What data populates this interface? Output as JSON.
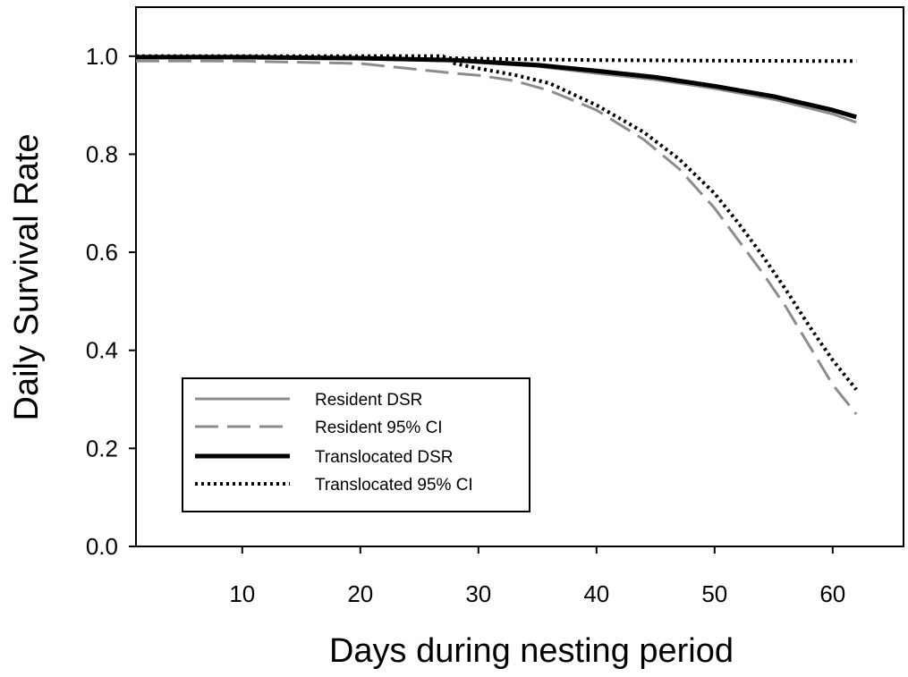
{
  "chart_data": {
    "type": "line",
    "xlabel": "Days during nesting period",
    "ylabel": "Daily Survival Rate",
    "xlim": [
      1,
      66
    ],
    "ylim": [
      0.0,
      1.1
    ],
    "xticks": [
      10,
      20,
      30,
      40,
      50,
      60
    ],
    "yticks": [
      0.0,
      0.2,
      0.4,
      0.6,
      0.8,
      1.0
    ],
    "xtick_labels": [
      "10",
      "20",
      "30",
      "40",
      "50",
      "60"
    ],
    "ytick_labels": [
      "0.0",
      "0.2",
      "0.4",
      "0.6",
      "0.8",
      "1.0"
    ],
    "grid": false,
    "legend_position": "bottom-left",
    "series": [
      {
        "name": "Resident DSR",
        "color": "#8c8c8c",
        "style": "solid",
        "x": [
          1,
          10,
          20,
          28,
          35,
          40,
          45,
          50,
          55,
          60,
          62
        ],
        "y": [
          0.997,
          0.996,
          0.994,
          0.99,
          0.979,
          0.965,
          0.952,
          0.934,
          0.912,
          0.882,
          0.865
        ]
      },
      {
        "name": "Resident 95% CI",
        "color": "#8c8c8c",
        "style": "dashed",
        "x": [
          1,
          10,
          20,
          28,
          30,
          33,
          36,
          40,
          44,
          47,
          50,
          52,
          54,
          56,
          58,
          60,
          62
        ],
        "y": [
          0.99,
          0.99,
          0.985,
          0.965,
          0.961,
          0.95,
          0.93,
          0.89,
          0.83,
          0.77,
          0.69,
          0.625,
          0.56,
          0.49,
          0.41,
          0.33,
          0.27
        ]
      },
      {
        "name": "Translocated DSR",
        "color": "#000000",
        "style": "solid",
        "x": [
          1,
          10,
          20,
          28,
          35,
          40,
          45,
          50,
          55,
          60,
          62
        ],
        "y": [
          0.998,
          0.998,
          0.996,
          0.992,
          0.982,
          0.97,
          0.957,
          0.939,
          0.918,
          0.89,
          0.876
        ]
      },
      {
        "name": "Translocated 95% CI",
        "color": "#000000",
        "style": "dotted",
        "x": [
          1,
          10,
          20,
          27,
          28,
          30,
          33,
          36,
          40,
          44,
          47,
          50,
          52,
          54,
          56,
          58,
          60,
          62
        ],
        "y": [
          1.0,
          1.0,
          1.0,
          1.0,
          0.985,
          0.975,
          0.962,
          0.945,
          0.9,
          0.845,
          0.79,
          0.72,
          0.66,
          0.595,
          0.525,
          0.45,
          0.38,
          0.32
        ]
      },
      {
        "name": "Translocated 95% CI (upper)",
        "color": "#000000",
        "style": "dotted",
        "x": [
          1,
          10,
          20,
          30,
          40,
          50,
          60,
          62
        ],
        "y": [
          0.999,
          0.999,
          0.999,
          0.995,
          0.992,
          0.991,
          0.99,
          0.99
        ]
      }
    ]
  }
}
